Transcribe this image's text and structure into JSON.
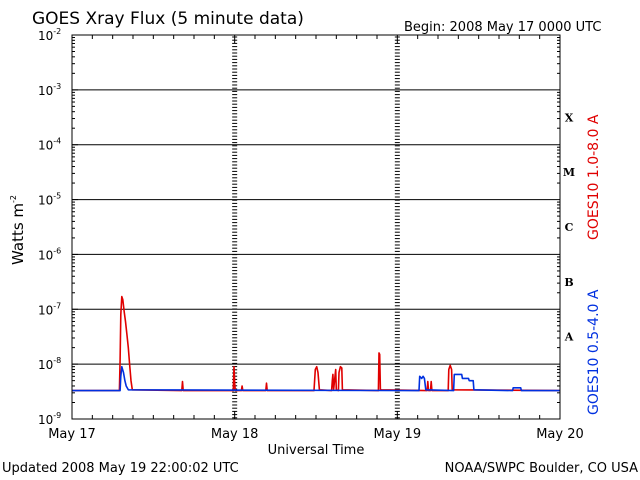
{
  "chart_data": {
    "type": "line",
    "title": "GOES Xray Flux (5 minute data)",
    "begin_label": "Begin:  2008 May 17 0000 UTC",
    "ylabel": "Watts m",
    "ylabel_sup": "-2",
    "xlabel": "Universal Time",
    "x_unit": "hours since 2008 May 17 00:00 UTC",
    "xlim": [
      0,
      72
    ],
    "ylim": [
      1e-09,
      0.01
    ],
    "y_scale": "log",
    "y_ticks": [
      {
        "exp": "-2",
        "value": 0.01
      },
      {
        "exp": "-3",
        "value": 0.001
      },
      {
        "exp": "-4",
        "value": 0.0001
      },
      {
        "exp": "-5",
        "value": 1e-05
      },
      {
        "exp": "-6",
        "value": 1e-06
      },
      {
        "exp": "-7",
        "value": 1e-07
      },
      {
        "exp": "-8",
        "value": 1e-08
      },
      {
        "exp": "-9",
        "value": 1e-09
      }
    ],
    "x_ticks": [
      {
        "label": "May 17",
        "x": 0
      },
      {
        "label": "May 18",
        "x": 24
      },
      {
        "label": "May 19",
        "x": 48
      },
      {
        "label": "May 20",
        "x": 72
      }
    ],
    "flare_classes": [
      {
        "label": "X",
        "low": 0.0001,
        "high": 0.001
      },
      {
        "label": "M",
        "low": 1e-05,
        "high": 0.0001
      },
      {
        "label": "C",
        "low": 1e-06,
        "high": 1e-05
      },
      {
        "label": "B",
        "low": 1e-07,
        "high": 1e-06
      },
      {
        "label": "A",
        "low": 1e-08,
        "high": 1e-07
      }
    ],
    "grid": true,
    "series": [
      {
        "name": "GOES10 1.0-8.0 A",
        "color": "#e00000",
        "points": [
          [
            0,
            3.3e-09
          ],
          [
            7.0,
            3.3e-09
          ],
          [
            7.1,
            1.2e-08
          ],
          [
            7.2,
            8e-08
          ],
          [
            7.35,
            1.7e-07
          ],
          [
            7.5,
            1.5e-07
          ],
          [
            7.7,
            9e-08
          ],
          [
            7.9,
            6e-08
          ],
          [
            8.1,
            3.5e-08
          ],
          [
            8.3,
            2e-08
          ],
          [
            8.5,
            1e-08
          ],
          [
            8.7,
            5e-09
          ],
          [
            8.9,
            3.4e-09
          ],
          [
            16.2,
            3.3e-09
          ],
          [
            16.3,
            4.8e-09
          ],
          [
            16.4,
            3.3e-09
          ],
          [
            23.8,
            3.3e-09
          ],
          [
            23.9,
            9e-09
          ],
          [
            24.0,
            4.5e-09
          ],
          [
            24.1,
            3.3e-09
          ],
          [
            25.0,
            3.3e-09
          ],
          [
            25.1,
            4e-09
          ],
          [
            25.2,
            3.3e-09
          ],
          [
            28.6,
            3.3e-09
          ],
          [
            28.7,
            4.5e-09
          ],
          [
            28.8,
            3.3e-09
          ],
          [
            35.7,
            3.3e-09
          ],
          [
            35.9,
            8e-09
          ],
          [
            36.1,
            9e-09
          ],
          [
            36.3,
            7e-09
          ],
          [
            36.5,
            3.4e-09
          ],
          [
            38.3,
            3.3e-09
          ],
          [
            38.4,
            5e-09
          ],
          [
            38.5,
            6.5e-09
          ],
          [
            38.6,
            3.4e-09
          ],
          [
            38.8,
            6e-09
          ],
          [
            38.9,
            8e-09
          ],
          [
            39.0,
            3.4e-09
          ],
          [
            39.3,
            3.3e-09
          ],
          [
            39.4,
            7e-09
          ],
          [
            39.6,
            9e-09
          ],
          [
            39.8,
            8.5e-09
          ],
          [
            39.9,
            3.4e-09
          ],
          [
            45.2,
            3.3e-09
          ],
          [
            45.3,
            1.6e-08
          ],
          [
            45.4,
            1.5e-08
          ],
          [
            45.5,
            3.4e-09
          ],
          [
            52.4,
            3.3e-09
          ],
          [
            52.5,
            4.8e-09
          ],
          [
            52.6,
            3.3e-09
          ],
          [
            52.9,
            3.3e-09
          ],
          [
            53.0,
            4.8e-09
          ],
          [
            53.1,
            3.3e-09
          ],
          [
            55.5,
            3.3e-09
          ],
          [
            55.6,
            8e-09
          ],
          [
            55.8,
            9.5e-09
          ],
          [
            56.0,
            8e-09
          ],
          [
            56.1,
            3.4e-09
          ],
          [
            72,
            3.3e-09
          ]
        ]
      },
      {
        "name": "GOES10 0.5-4.0 A",
        "color": "#0030e0",
        "points": [
          [
            0,
            3.3e-09
          ],
          [
            7.1,
            3.3e-09
          ],
          [
            7.2,
            6e-09
          ],
          [
            7.35,
            9e-09
          ],
          [
            7.6,
            7e-09
          ],
          [
            7.8,
            5e-09
          ],
          [
            8.0,
            4e-09
          ],
          [
            8.3,
            3.4e-09
          ],
          [
            51.2,
            3.3e-09
          ],
          [
            51.3,
            6e-09
          ],
          [
            51.6,
            5.5e-09
          ],
          [
            51.8,
            6e-09
          ],
          [
            52.0,
            5.5e-09
          ],
          [
            52.2,
            3.4e-09
          ],
          [
            56.3,
            3.3e-09
          ],
          [
            56.4,
            6.5e-09
          ],
          [
            57.5,
            6.5e-09
          ],
          [
            57.6,
            5.5e-09
          ],
          [
            58.5,
            5.5e-09
          ],
          [
            58.6,
            5e-09
          ],
          [
            59.2,
            5e-09
          ],
          [
            59.3,
            3.4e-09
          ],
          [
            65.0,
            3.3e-09
          ],
          [
            65.1,
            3.7e-09
          ],
          [
            66.2,
            3.7e-09
          ],
          [
            66.3,
            3.3e-09
          ],
          [
            72,
            3.3e-09
          ]
        ]
      }
    ]
  },
  "footer": {
    "updated": "Updated 2008 May 19 22:00:02 UTC",
    "source": "NOAA/SWPC Boulder, CO USA"
  }
}
